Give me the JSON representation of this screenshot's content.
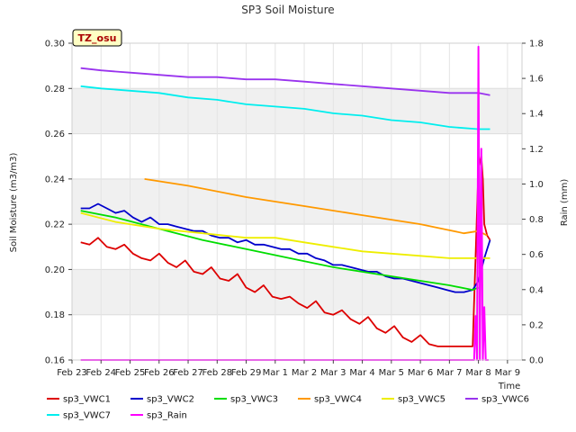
{
  "chart_data": {
    "type": "line",
    "title": "SP3 Soil Moisture",
    "xlabel": "Time",
    "ylabel": "Soil Moisture (m3/m3)",
    "y2label": "Rain (mm)",
    "badge": "TZ_osu",
    "xlim": [
      0,
      15.5
    ],
    "ylim": [
      0.16,
      0.3
    ],
    "y2lim": [
      0.0,
      1.8
    ],
    "x_ticks": [
      0,
      1,
      2,
      3,
      4,
      5,
      6,
      7,
      8,
      9,
      10,
      11,
      12,
      13,
      14,
      15
    ],
    "x_tick_labels": [
      "Feb 23",
      "Feb 24",
      "Feb 25",
      "Feb 26",
      "Feb 27",
      "Feb 28",
      "Feb 29",
      "Mar 1",
      "Mar 2",
      "Mar 3",
      "Mar 4",
      "Mar 5",
      "Mar 6",
      "Mar 7",
      "Mar 8",
      "Mar 9"
    ],
    "y_ticks": [
      0.16,
      0.18,
      0.2,
      0.22,
      0.24,
      0.26,
      0.28,
      0.3
    ],
    "y_tick_labels": [
      "0.16",
      "0.18",
      "0.20",
      "0.22",
      "0.24",
      "0.26",
      "0.28",
      "0.30"
    ],
    "y2_ticks": [
      0.0,
      0.2,
      0.4,
      0.6,
      0.8,
      1.0,
      1.2,
      1.4,
      1.6,
      1.8
    ],
    "y2_tick_labels": [
      "0.0",
      "0.2",
      "0.4",
      "0.6",
      "0.8",
      "1.0",
      "1.2",
      "1.4",
      "1.6",
      "1.8"
    ],
    "bands": [
      [
        0.18,
        0.2
      ],
      [
        0.22,
        0.24
      ],
      [
        0.26,
        0.28
      ]
    ],
    "grid": true,
    "legend_position": "bottom",
    "series": [
      {
        "name": "sp3_VWC1",
        "color": "#dd0000",
        "axis": "left",
        "x": [
          0.3,
          0.6,
          0.9,
          1.2,
          1.5,
          1.8,
          2.1,
          2.4,
          2.7,
          3.0,
          3.3,
          3.6,
          3.9,
          4.2,
          4.5,
          4.8,
          5.1,
          5.4,
          5.7,
          6.0,
          6.3,
          6.6,
          6.9,
          7.2,
          7.5,
          7.8,
          8.1,
          8.4,
          8.7,
          9.0,
          9.3,
          9.6,
          9.9,
          10.2,
          10.5,
          10.8,
          11.1,
          11.4,
          11.7,
          12.0,
          12.3,
          12.6,
          12.9,
          13.2,
          13.5,
          13.8,
          14.0,
          14.1,
          14.15,
          14.2,
          14.3,
          14.4
        ],
        "y": [
          0.212,
          0.211,
          0.214,
          0.21,
          0.209,
          0.211,
          0.207,
          0.205,
          0.204,
          0.207,
          0.203,
          0.201,
          0.204,
          0.199,
          0.198,
          0.201,
          0.196,
          0.195,
          0.198,
          0.192,
          0.19,
          0.193,
          0.188,
          0.187,
          0.188,
          0.185,
          0.183,
          0.186,
          0.181,
          0.18,
          0.182,
          0.178,
          0.176,
          0.179,
          0.174,
          0.172,
          0.175,
          0.17,
          0.168,
          0.171,
          0.167,
          0.166,
          0.166,
          0.166,
          0.166,
          0.166,
          0.245,
          0.25,
          0.24,
          0.22,
          0.215,
          0.213
        ]
      },
      {
        "name": "sp3_VWC2",
        "color": "#0000cc",
        "axis": "left",
        "x": [
          0.3,
          0.6,
          0.9,
          1.2,
          1.5,
          1.8,
          2.1,
          2.4,
          2.7,
          3.0,
          3.3,
          3.6,
          3.9,
          4.2,
          4.5,
          4.8,
          5.1,
          5.4,
          5.7,
          6.0,
          6.3,
          6.6,
          6.9,
          7.2,
          7.5,
          7.8,
          8.1,
          8.4,
          8.7,
          9.0,
          9.3,
          9.6,
          9.9,
          10.2,
          10.5,
          10.8,
          11.1,
          11.4,
          11.7,
          12.0,
          12.3,
          12.6,
          12.9,
          13.2,
          13.5,
          13.8,
          14.0,
          14.2,
          14.4
        ],
        "y": [
          0.227,
          0.227,
          0.229,
          0.227,
          0.225,
          0.226,
          0.223,
          0.221,
          0.223,
          0.22,
          0.22,
          0.219,
          0.218,
          0.217,
          0.217,
          0.215,
          0.214,
          0.214,
          0.212,
          0.213,
          0.211,
          0.211,
          0.21,
          0.209,
          0.209,
          0.207,
          0.207,
          0.205,
          0.204,
          0.202,
          0.202,
          0.201,
          0.2,
          0.199,
          0.199,
          0.197,
          0.196,
          0.196,
          0.195,
          0.194,
          0.193,
          0.192,
          0.191,
          0.19,
          0.19,
          0.191,
          0.195,
          0.205,
          0.213
        ]
      },
      {
        "name": "sp3_VWC3",
        "color": "#00dd00",
        "axis": "left",
        "x": [
          0.3,
          1.5,
          3.0,
          4.5,
          6.0,
          7.5,
          9.0,
          10.5,
          12.0,
          13.0,
          13.8,
          14.0
        ],
        "y": [
          0.226,
          0.223,
          0.218,
          0.213,
          0.209,
          0.205,
          0.201,
          0.198,
          0.195,
          0.193,
          0.191,
          0.192
        ]
      },
      {
        "name": "sp3_VWC4",
        "color": "#ff9900",
        "axis": "left",
        "x": [
          2.5,
          4.0,
          6.0,
          8.0,
          10.0,
          12.0,
          13.5,
          14.0,
          14.3
        ],
        "y": [
          0.24,
          0.237,
          0.232,
          0.228,
          0.224,
          0.22,
          0.216,
          0.217,
          0.215
        ]
      },
      {
        "name": "sp3_VWC5",
        "color": "#eeee00",
        "axis": "left",
        "x": [
          0.3,
          1.5,
          3.0,
          4.5,
          6.0,
          7.0,
          8.0,
          9.0,
          10.0,
          11.0,
          12.0,
          13.0,
          14.0,
          14.4
        ],
        "y": [
          0.225,
          0.221,
          0.218,
          0.216,
          0.214,
          0.214,
          0.212,
          0.21,
          0.208,
          0.207,
          0.206,
          0.205,
          0.205,
          0.205
        ]
      },
      {
        "name": "sp3_VWC6",
        "color": "#9933ee",
        "axis": "left",
        "x": [
          0.3,
          1.0,
          2.0,
          3.0,
          4.0,
          5.0,
          6.0,
          7.0,
          8.0,
          9.0,
          10.0,
          11.0,
          12.0,
          13.0,
          14.0,
          14.4
        ],
        "y": [
          0.289,
          0.288,
          0.287,
          0.286,
          0.285,
          0.285,
          0.284,
          0.284,
          0.283,
          0.282,
          0.281,
          0.28,
          0.279,
          0.278,
          0.278,
          0.277
        ]
      },
      {
        "name": "sp3_VWC7",
        "color": "#00eeee",
        "axis": "left",
        "x": [
          0.3,
          1.0,
          2.0,
          3.0,
          4.0,
          5.0,
          6.0,
          7.0,
          8.0,
          9.0,
          10.0,
          11.0,
          12.0,
          13.0,
          14.0,
          14.4
        ],
        "y": [
          0.281,
          0.28,
          0.279,
          0.278,
          0.276,
          0.275,
          0.273,
          0.272,
          0.271,
          0.269,
          0.268,
          0.266,
          0.265,
          0.263,
          0.262,
          0.262
        ]
      },
      {
        "name": "sp3_Rain",
        "color": "#ff00ff",
        "axis": "right",
        "x": [
          0.3,
          13.85,
          13.9,
          13.95,
          14.0,
          14.05,
          14.1,
          14.15,
          14.2,
          14.25,
          14.3,
          14.35
        ],
        "y": [
          0.0,
          0.0,
          0.25,
          0.0,
          1.78,
          0.0,
          1.2,
          0.0,
          0.3,
          0.0,
          0.0,
          0.0
        ]
      }
    ]
  }
}
